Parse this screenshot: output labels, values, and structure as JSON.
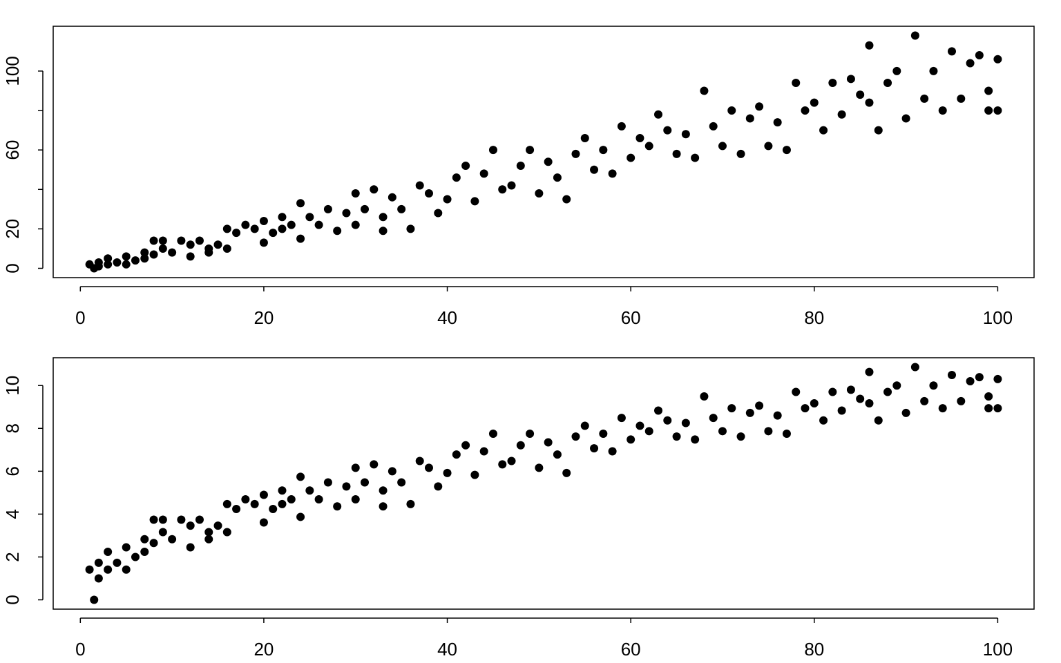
{
  "chart_data": [
    {
      "type": "scatter",
      "color": "#000000",
      "x": [
        1,
        1.5,
        2,
        2,
        3,
        3,
        4,
        5,
        5,
        6,
        7,
        7,
        8,
        8,
        9,
        9,
        10,
        11,
        12,
        12,
        13,
        14,
        14,
        15,
        16,
        16,
        17,
        18,
        19,
        20,
        20,
        21,
        22,
        22,
        23,
        24,
        24,
        25,
        26,
        27,
        28,
        29,
        30,
        30,
        31,
        32,
        33,
        33,
        34,
        35,
        36,
        37,
        38,
        39,
        40,
        41,
        42,
        43,
        44,
        45,
        46,
        47,
        48,
        49,
        50,
        51,
        52,
        53,
        54,
        55,
        56,
        57,
        58,
        59,
        60,
        61,
        62,
        63,
        64,
        65,
        66,
        67,
        68,
        69,
        70,
        71,
        72,
        73,
        74,
        75,
        76,
        77,
        78,
        79,
        80,
        81,
        82,
        83,
        84,
        85,
        86,
        86,
        87,
        88,
        89,
        90,
        91,
        92,
        93,
        94,
        95,
        96,
        97,
        98,
        99,
        99,
        100,
        100
      ],
      "y": [
        2,
        0,
        3,
        1,
        5,
        2,
        3,
        6,
        2,
        4,
        8,
        5,
        14,
        7,
        10,
        14,
        8,
        14,
        6,
        12,
        14,
        10,
        8,
        12,
        20,
        10,
        18,
        22,
        20,
        24,
        13,
        18,
        26,
        20,
        22,
        33,
        15,
        26,
        22,
        30,
        19,
        28,
        38,
        22,
        30,
        40,
        26,
        19,
        36,
        30,
        20,
        42,
        38,
        28,
        35,
        46,
        52,
        34,
        48,
        60,
        40,
        42,
        52,
        60,
        38,
        54,
        46,
        35,
        58,
        66,
        50,
        60,
        48,
        72,
        56,
        66,
        62,
        78,
        70,
        58,
        68,
        56,
        90,
        72,
        62,
        80,
        58,
        76,
        82,
        62,
        74,
        60,
        94,
        80,
        84,
        70,
        94,
        78,
        96,
        88,
        113,
        84,
        70,
        94,
        100,
        76,
        118,
        86,
        100,
        80,
        110,
        86,
        104,
        108,
        90,
        80,
        106,
        80
      ],
      "xlim": [
        -2.96,
        103.96
      ],
      "ylim": [
        -4.72,
        122.72
      ],
      "xticks": [
        0,
        20,
        40,
        60,
        80,
        100
      ],
      "yticks": [
        0,
        20,
        60,
        100
      ],
      "yticks_unlabeled": [
        40,
        80
      ]
    },
    {
      "type": "scatter",
      "color": "#000000",
      "x": [
        1,
        1.5,
        2,
        2,
        3,
        3,
        4,
        5,
        5,
        6,
        7,
        7,
        8,
        8,
        9,
        9,
        10,
        11,
        12,
        12,
        13,
        14,
        14,
        15,
        16,
        16,
        17,
        18,
        19,
        20,
        20,
        21,
        22,
        22,
        23,
        24,
        24,
        25,
        26,
        27,
        28,
        29,
        30,
        30,
        31,
        32,
        33,
        33,
        34,
        35,
        36,
        37,
        38,
        39,
        40,
        41,
        42,
        43,
        44,
        45,
        46,
        47,
        48,
        49,
        50,
        51,
        52,
        53,
        54,
        55,
        56,
        57,
        58,
        59,
        60,
        61,
        62,
        63,
        64,
        65,
        66,
        67,
        68,
        69,
        70,
        71,
        72,
        73,
        74,
        75,
        76,
        77,
        78,
        79,
        80,
        81,
        82,
        83,
        84,
        85,
        86,
        86,
        87,
        88,
        89,
        90,
        91,
        92,
        93,
        94,
        95,
        96,
        97,
        98,
        99,
        99,
        100,
        100
      ],
      "y": [
        1.41,
        0,
        1.73,
        1,
        2.24,
        1.41,
        1.73,
        2.45,
        1.41,
        2,
        2.83,
        2.24,
        3.74,
        2.65,
        3.16,
        3.74,
        2.83,
        3.74,
        2.45,
        3.46,
        3.74,
        3.16,
        2.83,
        3.46,
        4.47,
        3.16,
        4.24,
        4.69,
        4.47,
        4.9,
        3.61,
        4.24,
        5.1,
        4.47,
        4.69,
        5.74,
        3.87,
        5.1,
        4.69,
        5.48,
        4.36,
        5.29,
        6.16,
        4.69,
        5.48,
        6.32,
        5.1,
        4.36,
        6,
        5.48,
        4.47,
        6.48,
        6.16,
        5.29,
        5.92,
        6.78,
        7.21,
        5.83,
        6.93,
        7.75,
        6.32,
        6.48,
        7.21,
        7.75,
        6.16,
        7.35,
        6.78,
        5.92,
        7.62,
        8.12,
        7.07,
        7.75,
        6.93,
        8.49,
        7.48,
        8.12,
        7.87,
        8.83,
        8.37,
        7.62,
        8.25,
        7.48,
        9.49,
        8.49,
        7.87,
        8.94,
        7.62,
        8.72,
        9.06,
        7.87,
        8.6,
        7.75,
        9.7,
        8.94,
        9.17,
        8.37,
        9.7,
        8.83,
        9.8,
        9.38,
        10.63,
        9.17,
        8.37,
        9.7,
        10,
        8.72,
        10.86,
        9.27,
        10,
        8.94,
        10.49,
        9.27,
        10.2,
        10.39,
        9.49,
        8.94,
        10.3,
        8.94
      ],
      "xlim": [
        -2.96,
        103.96
      ],
      "ylim": [
        -0.434,
        11.296
      ],
      "xticks": [
        0,
        20,
        40,
        60,
        80,
        100
      ],
      "yticks": [
        0,
        2,
        4,
        6,
        8,
        10
      ]
    }
  ]
}
